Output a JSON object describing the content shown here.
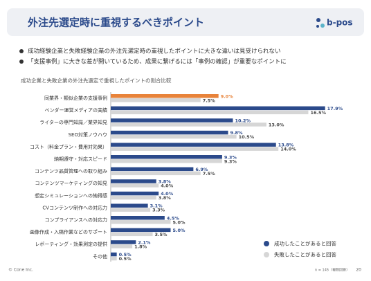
{
  "header": {
    "title": "外注先選定時に重視するべきポイント",
    "logo": "b-pos"
  },
  "bullets": [
    "成功経験企業と失敗経験企業の外注先選定時の重視したポイントに大きな違いは見受けられない",
    "「支援事例」に大きな差が開いているため、成果に繋げるには「事例の確認」が重要なポイントに"
  ],
  "chart_data": {
    "type": "hbar",
    "title": "成功企業と失敗企業の外注先選定で重視したポイントの割合比較",
    "categories": [
      "同業界・類似企業の支援事例",
      "ベンダー運営メディアの実績",
      "ライターの専門知識／業界知見",
      "SEO対策ノウハウ",
      "コスト（料金プラン・費用対効果）",
      "納期遵守・対応スピード",
      "コンテンツ品質管理への取り組み",
      "コンテンツマーケティングの知見",
      "想定シミュレーションへの納得感",
      "CVコンテンツ制作への対応力",
      "コンプライアンスへの対応力",
      "画像作成・入稿作業などのサポート",
      "レポーティング・効果測定の提供",
      "その他"
    ],
    "series": [
      {
        "name": "成功したことがあると回答",
        "color": "#2b4a8b",
        "point_colors": [
          "#e8833a",
          null,
          null,
          null,
          null,
          null,
          null,
          null,
          null,
          null,
          null,
          null,
          null,
          null
        ],
        "values": [
          9.0,
          17.9,
          10.2,
          9.8,
          13.8,
          9.3,
          6.9,
          3.8,
          4.0,
          3.1,
          4.5,
          5.0,
          2.1,
          0.5
        ],
        "value_labels": [
          "9.0%",
          "17.9%",
          "10.2%",
          "9.8%",
          "13.8%",
          "9.3%",
          "6.9%",
          "3.8%",
          "4.0%",
          "3.1%",
          "4.5%",
          "5.0%",
          "2.1%",
          "0.5%"
        ]
      },
      {
        "name": "失敗したことがあると回答",
        "color": "#d6d6d6",
        "values": [
          7.5,
          16.5,
          13.0,
          10.5,
          14.0,
          9.3,
          7.5,
          4.0,
          3.8,
          3.3,
          5.0,
          3.5,
          1.8,
          0.5
        ],
        "value_labels": [
          "7.5%",
          "16.5%",
          "13.0%",
          "10.5%",
          "14.0%",
          "9.3%",
          "7.5%",
          "4.0%",
          "3.8%",
          "3.3%",
          "5.0%",
          "3.5%",
          "1.8%",
          "0.5%"
        ]
      }
    ],
    "xlim": [
      0,
      20
    ],
    "legend": "bottom-right"
  },
  "footer": {
    "copyright": "© Cone Inc.",
    "note": "n = 145（複数回答）",
    "page": "20"
  }
}
